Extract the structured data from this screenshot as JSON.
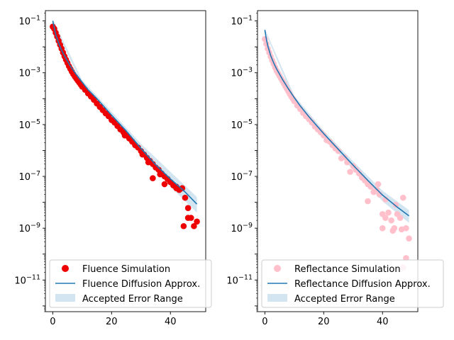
{
  "chart_data": [
    {
      "type": "scatter",
      "title": "",
      "xlabel": "",
      "ylabel": "",
      "y_scale": "log",
      "xlim": [
        -2.5,
        52
      ],
      "ylim": [
        6e-13,
        0.25
      ],
      "x_ticks": [
        0,
        20,
        40
      ],
      "x_tick_labels": [
        "0",
        "20",
        "40"
      ],
      "y_ticks": [
        1e-11,
        1e-09,
        1e-07,
        1e-05,
        0.001,
        0.1
      ],
      "y_tick_labels": [
        {
          "base": "10",
          "exp": "−11"
        },
        {
          "base": "10",
          "exp": "−9"
        },
        {
          "base": "10",
          "exp": "−7"
        },
        {
          "base": "10",
          "exp": "−5"
        },
        {
          "base": "10",
          "exp": "−3"
        },
        {
          "base": "10",
          "exp": "−1"
        }
      ],
      "legend_position": "lower-left",
      "legend": [
        {
          "label": "Fluence Simulation",
          "kind": "marker"
        },
        {
          "label": "Fluence Diffusion Approx.",
          "kind": "line"
        },
        {
          "label": "Accepted Error Range",
          "kind": "band"
        }
      ],
      "colors": {
        "points": "#ee0000",
        "line": "#1f77b4",
        "band": "#a8cce4"
      },
      "series": [
        {
          "name": "Fluence Simulation",
          "kind": "scatter",
          "points": [
            [
              0,
              0.06
            ],
            [
              0.5,
              0.05
            ],
            [
              1,
              0.035
            ],
            [
              1.5,
              0.025
            ],
            [
              2,
              0.017
            ],
            [
              2.5,
              0.012
            ],
            [
              3,
              0.0085
            ],
            [
              3.5,
              0.006
            ],
            [
              4,
              0.0043
            ],
            [
              4.5,
              0.0032
            ],
            [
              5,
              0.0024
            ],
            [
              5.5,
              0.0018
            ],
            [
              6,
              0.0014
            ],
            [
              6.5,
              0.0011
            ],
            [
              7,
              0.00088
            ],
            [
              7.5,
              0.00072
            ],
            [
              8,
              0.0006
            ],
            [
              8.5,
              0.0005
            ],
            [
              9,
              0.00042
            ],
            [
              9.5,
              0.00035
            ],
            [
              10,
              0.00029
            ],
            [
              11,
              0.00022
            ],
            [
              12,
              0.00016
            ],
            [
              13,
              0.00012
            ],
            [
              14,
              9e-05
            ],
            [
              15,
              6.5e-05
            ],
            [
              16,
              4.8e-05
            ],
            [
              17,
              3.6e-05
            ],
            [
              18,
              2.7e-05
            ],
            [
              19,
              2.1e-05
            ],
            [
              20,
              1.5e-05
            ],
            [
              21,
              1.2e-05
            ],
            [
              22,
              8.8e-06
            ],
            [
              23,
              6.5e-06
            ],
            [
              24,
              5.1e-06
            ],
            [
              25,
              3.8e-06
            ],
            [
              26,
              2.9e-06
            ],
            [
              27,
              2.2e-06
            ],
            [
              28,
              1.6e-06
            ],
            [
              29,
              1.3e-06
            ],
            [
              30,
              9.5e-07
            ],
            [
              31,
              7e-07
            ],
            [
              32,
              5.2e-07
            ],
            [
              33,
              4e-07
            ],
            [
              34,
              3e-07
            ],
            [
              35,
              2.2e-07
            ],
            [
              36,
              1.8e-07
            ],
            [
              37,
              1.3e-07
            ],
            [
              38,
              1e-07
            ],
            [
              39,
              8e-08
            ],
            [
              40,
              6e-08
            ],
            [
              41,
              4.5e-08
            ],
            [
              42,
              4e-08
            ],
            [
              43,
              3e-08
            ],
            [
              44,
              3.5e-08
            ],
            [
              45,
              1.5e-08
            ],
            [
              46,
              6e-09
            ],
            [
              47,
              2.5e-09
            ],
            [
              48,
              1.2e-09
            ],
            [
              49,
              1.8e-09
            ],
            [
              46,
              2.5e-09
            ],
            [
              44.5,
              1.2e-09
            ],
            [
              36.5,
              1.2e-07
            ],
            [
              34,
              8.5e-08
            ],
            [
              38,
              5e-08
            ],
            [
              42,
              3.5e-08
            ],
            [
              24.5,
              3.8e-06
            ],
            [
              30.5,
              7e-07
            ],
            [
              32.5,
              3.5e-07
            ]
          ]
        },
        {
          "name": "Fluence Diffusion Approx.",
          "kind": "line",
          "points": [
            [
              0,
              0.1
            ],
            [
              1,
              0.03
            ],
            [
              2,
              0.014
            ],
            [
              3,
              0.0075
            ],
            [
              4,
              0.0045
            ],
            [
              6,
              0.0018
            ],
            [
              8,
              0.00085
            ],
            [
              10,
              0.00043
            ],
            [
              12,
              0.00022
            ],
            [
              15,
              0.0001
            ],
            [
              20,
              2.3e-05
            ],
            [
              25,
              5.6e-06
            ],
            [
              30,
              1.2e-06
            ],
            [
              35,
              2.8e-07
            ],
            [
              40,
              8e-08
            ],
            [
              45,
              2.5e-08
            ],
            [
              49,
              8.5e-09
            ]
          ]
        },
        {
          "name": "Accepted Error Range",
          "kind": "band",
          "lower": [
            [
              0,
              0.085
            ],
            [
              10,
              0.00035
            ],
            [
              20,
              1.6e-05
            ],
            [
              30,
              8e-07
            ],
            [
              40,
              4e-08
            ],
            [
              49,
              4e-09
            ]
          ],
          "upper": [
            [
              0,
              0.12
            ],
            [
              10,
              0.00052
            ],
            [
              20,
              3.1e-05
            ],
            [
              30,
              1.8e-06
            ],
            [
              40,
              1.5e-07
            ],
            [
              49,
              1.6e-08
            ]
          ]
        }
      ]
    },
    {
      "type": "scatter",
      "title": "",
      "xlabel": "",
      "ylabel": "",
      "y_scale": "log",
      "xlim": [
        -2.5,
        52
      ],
      "ylim": [
        6e-13,
        0.25
      ],
      "x_ticks": [
        0,
        20,
        40
      ],
      "x_tick_labels": [
        "0",
        "20",
        "40"
      ],
      "y_ticks": [
        1e-11,
        1e-09,
        1e-07,
        1e-05,
        0.001,
        0.1
      ],
      "y_tick_labels": [
        {
          "base": "10",
          "exp": "−11"
        },
        {
          "base": "10",
          "exp": "−9"
        },
        {
          "base": "10",
          "exp": "−7"
        },
        {
          "base": "10",
          "exp": "−5"
        },
        {
          "base": "10",
          "exp": "−3"
        },
        {
          "base": "10",
          "exp": "−1"
        }
      ],
      "legend_position": "lower-left",
      "legend": [
        {
          "label": "Reflectance Simulation",
          "kind": "marker"
        },
        {
          "label": "Reflectance Diffusion Approx.",
          "kind": "line"
        },
        {
          "label": "Accepted Error Range",
          "kind": "band"
        }
      ],
      "colors": {
        "points": "#ffc0cb",
        "line": "#1f77b4",
        "band": "#a8cce4"
      },
      "series": [
        {
          "name": "Reflectance Simulation",
          "kind": "scatter",
          "points": [
            [
              0,
              0.02
            ],
            [
              0.5,
              0.013
            ],
            [
              1,
              0.0085
            ],
            [
              1.5,
              0.006
            ],
            [
              2,
              0.0042
            ],
            [
              2.5,
              0.003
            ],
            [
              3,
              0.0022
            ],
            [
              3.5,
              0.0016
            ],
            [
              4,
              0.0012
            ],
            [
              4.5,
              0.00095
            ],
            [
              5,
              0.00075
            ],
            [
              5.5,
              0.0006
            ],
            [
              6,
              0.00048
            ],
            [
              6.5,
              0.00038
            ],
            [
              7,
              0.0003
            ],
            [
              7.5,
              0.00024
            ],
            [
              8,
              0.00019
            ],
            [
              8.5,
              0.00015
            ],
            [
              9,
              0.00012
            ],
            [
              9.5,
              0.0001
            ],
            [
              10,
              8e-05
            ],
            [
              11,
              5.5e-05
            ],
            [
              12,
              4e-05
            ],
            [
              13,
              2.8e-05
            ],
            [
              14,
              2.1e-05
            ],
            [
              15,
              1.6e-05
            ],
            [
              16,
              1.2e-05
            ],
            [
              17,
              8.5e-06
            ],
            [
              18,
              6.5e-06
            ],
            [
              19,
              5e-06
            ],
            [
              20,
              3.8e-06
            ],
            [
              21,
              2.5e-06
            ],
            [
              22,
              2.2e-06
            ],
            [
              23,
              1.6e-06
            ],
            [
              24,
              1.2e-06
            ],
            [
              25,
              9.5e-07
            ],
            [
              26,
              5e-07
            ],
            [
              27,
              5.5e-07
            ],
            [
              28,
              3.5e-07
            ],
            [
              29,
              1.5e-07
            ],
            [
              30,
              2.5e-07
            ],
            [
              31,
              1.8e-07
            ],
            [
              32,
              1.3e-07
            ],
            [
              33,
              9e-08
            ],
            [
              34,
              7e-08
            ],
            [
              35,
              5e-08
            ],
            [
              36,
              4e-08
            ],
            [
              37,
              2.5e-08
            ],
            [
              38,
              3e-08
            ],
            [
              39,
              2e-08
            ],
            [
              40,
              3.5e-09
            ],
            [
              41,
              2.5e-09
            ],
            [
              42,
              4e-09
            ],
            [
              43,
              2e-09
            ],
            [
              44,
              1e-09
            ],
            [
              45,
              3.5e-09
            ],
            [
              46,
              2.5e-09
            ],
            [
              47,
              1.5e-08
            ],
            [
              48,
              7e-11
            ],
            [
              49,
              4e-10
            ],
            [
              35,
              1.1e-08
            ],
            [
              38.5,
              5e-08
            ],
            [
              40,
              1e-09
            ],
            [
              41,
              1.3e-08
            ],
            [
              43.5,
              8e-10
            ],
            [
              44.5,
              8e-09
            ],
            [
              46.5,
              9e-10
            ],
            [
              47,
              3e-11
            ],
            [
              48,
              1e-09
            ]
          ]
        },
        {
          "name": "Reflectance Diffusion Approx.",
          "kind": "line",
          "points": [
            [
              0,
              0.045
            ],
            [
              0.5,
              0.02
            ],
            [
              1,
              0.011
            ],
            [
              2,
              0.0045
            ],
            [
              3,
              0.0024
            ],
            [
              4,
              0.0014
            ],
            [
              6,
              0.00055
            ],
            [
              8,
              0.00024
            ],
            [
              10,
              0.00011
            ],
            [
              12,
              5.3e-05
            ],
            [
              15,
              2e-05
            ],
            [
              20,
              4.5e-06
            ],
            [
              25,
              1.1e-06
            ],
            [
              30,
              2.7e-07
            ],
            [
              35,
              7e-08
            ],
            [
              40,
              1.9e-08
            ],
            [
              45,
              6.5e-09
            ],
            [
              49,
              3e-09
            ]
          ]
        },
        {
          "name": "Accepted Error Range",
          "kind": "band",
          "lower": [
            [
              0,
              0.04
            ],
            [
              10,
              8.5e-05
            ],
            [
              20,
              3.2e-06
            ],
            [
              30,
              1.8e-07
            ],
            [
              40,
              1.1e-08
            ],
            [
              49,
              1.6e-09
            ]
          ],
          "upper": [
            [
              0,
              0.05
            ],
            [
              10,
              0.00013
            ],
            [
              20,
              5.8e-06
            ],
            [
              30,
              3.8e-07
            ],
            [
              40,
              2.8e-08
            ],
            [
              49,
              5e-09
            ]
          ]
        }
      ]
    }
  ]
}
